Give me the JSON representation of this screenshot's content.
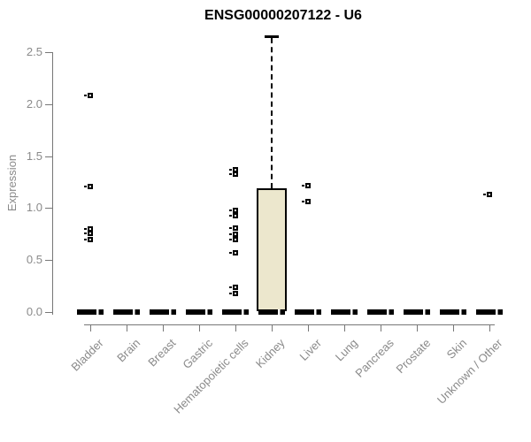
{
  "chart_data": {
    "type": "boxplot",
    "title": "ENSG00000207122 - U6",
    "ylabel": "Expression",
    "xlabel": "",
    "ylim": [
      0,
      2.65
    ],
    "yticks": [
      0.0,
      0.5,
      1.0,
      1.5,
      2.0,
      2.5
    ],
    "grid": false,
    "legend": "none",
    "box_fill": "#ece7cd",
    "axis_color": "#777777",
    "label_color": "#8a8a8a",
    "categories": [
      "Bladder",
      "Brain",
      "Breast",
      "Gastric",
      "Hematopoietic cells",
      "Kidney",
      "Liver",
      "Lung",
      "Pancreas",
      "Prostate",
      "Skin",
      "Unknown / Other"
    ],
    "groups": [
      {
        "category": "Bladder",
        "q1": 0,
        "median": 0,
        "q3": 0,
        "whisker_low": 0,
        "whisker_high": 0,
        "outliers": [
          2.08,
          1.21,
          0.8,
          0.76,
          0.7
        ]
      },
      {
        "category": "Brain",
        "q1": 0,
        "median": 0,
        "q3": 0,
        "whisker_low": 0,
        "whisker_high": 0,
        "outliers": []
      },
      {
        "category": "Breast",
        "q1": 0,
        "median": 0,
        "q3": 0,
        "whisker_low": 0,
        "whisker_high": 0,
        "outliers": []
      },
      {
        "category": "Gastric",
        "q1": 0,
        "median": 0,
        "q3": 0,
        "whisker_low": 0,
        "whisker_high": 0,
        "outliers": []
      },
      {
        "category": "Hematopoietic cells",
        "q1": 0,
        "median": 0,
        "q3": 0,
        "whisker_low": 0,
        "whisker_high": 0,
        "outliers": [
          1.37,
          1.33,
          0.98,
          0.93,
          0.81,
          0.75,
          0.7,
          0.57,
          0.24,
          0.18
        ]
      },
      {
        "category": "Kidney",
        "q1": 0,
        "median": 0,
        "q3": 1.19,
        "whisker_low": 0,
        "whisker_high": 2.65,
        "outliers": []
      },
      {
        "category": "Liver",
        "q1": 0,
        "median": 0,
        "q3": 0,
        "whisker_low": 0,
        "whisker_high": 0,
        "outliers": [
          1.22,
          1.06
        ]
      },
      {
        "category": "Lung",
        "q1": 0,
        "median": 0,
        "q3": 0,
        "whisker_low": 0,
        "whisker_high": 0,
        "outliers": []
      },
      {
        "category": "Pancreas",
        "q1": 0,
        "median": 0,
        "q3": 0,
        "whisker_low": 0,
        "whisker_high": 0,
        "outliers": []
      },
      {
        "category": "Prostate",
        "q1": 0,
        "median": 0,
        "q3": 0,
        "whisker_low": 0,
        "whisker_high": 0,
        "outliers": []
      },
      {
        "category": "Skin",
        "q1": 0,
        "median": 0,
        "q3": 0,
        "whisker_low": 0,
        "whisker_high": 0,
        "outliers": []
      },
      {
        "category": "Unknown / Other",
        "q1": 0,
        "median": 0,
        "q3": 0,
        "whisker_low": 0,
        "whisker_high": 0,
        "outliers": [
          1.13
        ]
      }
    ]
  }
}
